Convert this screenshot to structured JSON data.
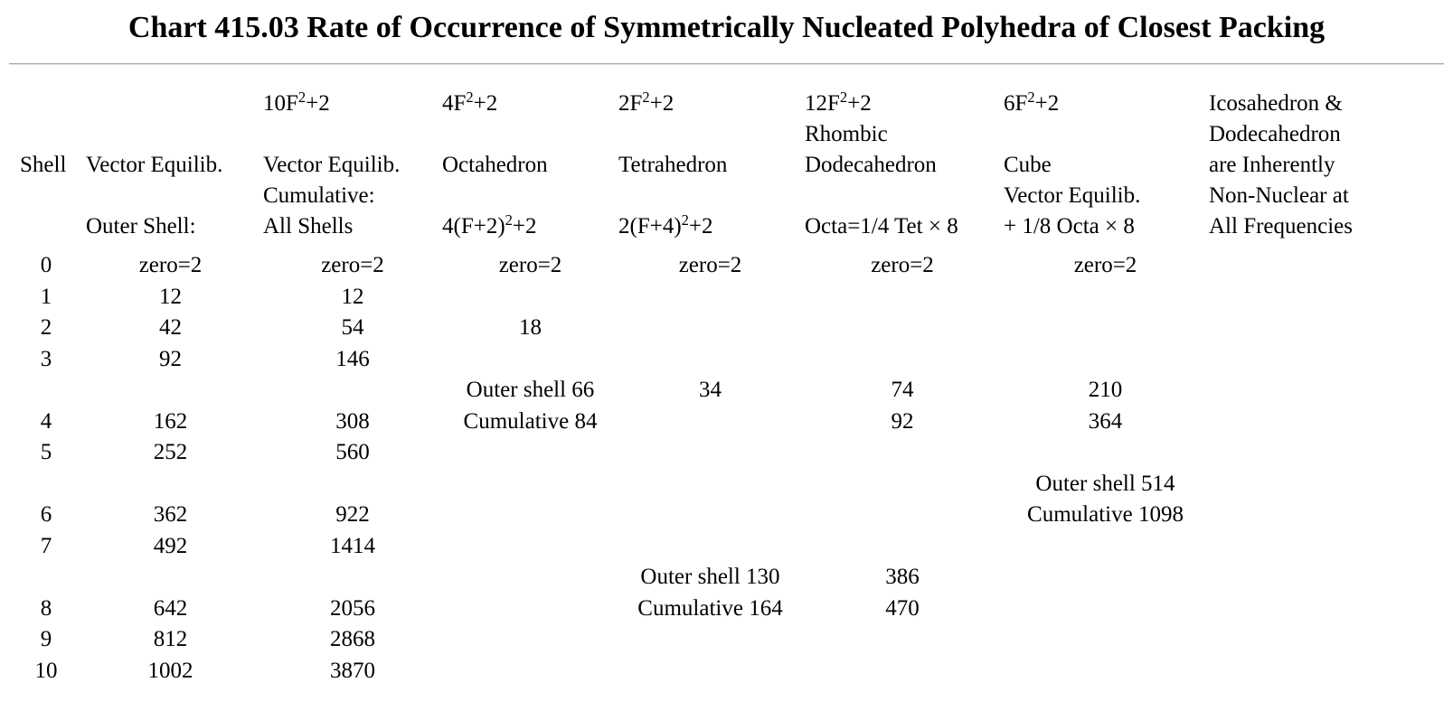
{
  "chart_data": {
    "type": "table",
    "title": "Chart 415.03 Rate of Occurrence of Symmetrically Nucleated Polyhedra of Closest Packing",
    "column_keys": [
      "shell",
      "vector-equilib-outer-shell",
      "vector-equilib-cumulative",
      "octahedron",
      "tetrahedron",
      "rhombic-dodecahedron",
      "cube",
      "icosa-dodeca-note"
    ],
    "header_rows": [
      [
        "",
        "",
        {
          "pre": "10F",
          "sup": "2",
          "post": "+2"
        },
        {
          "pre": "4F",
          "sup": "2",
          "post": "+2"
        },
        {
          "pre": "2F",
          "sup": "2",
          "post": "+2"
        },
        {
          "pre": "12F",
          "sup": "2",
          "post": "+2"
        },
        {
          "pre": "6F",
          "sup": "2",
          "post": "+2"
        },
        "Icosahedron &"
      ],
      [
        "",
        "",
        "",
        "",
        "",
        "Rhombic",
        "",
        "Dodecahedron"
      ],
      [
        "Shell",
        "Vector Equilib.",
        "Vector Equilib.",
        "Octahedron",
        "Tetrahedron",
        "Dodecahedron",
        "Cube",
        "are Inherently"
      ],
      [
        "",
        "",
        "Cumulative:",
        "",
        "",
        "",
        "Vector Equilib.",
        "Non-Nuclear at"
      ],
      [
        "",
        "Outer Shell:",
        "All Shells",
        {
          "pre": "4(F+2)",
          "sup": "2",
          "post": "+2"
        },
        {
          "pre": "2(F+4)",
          "sup": "2",
          "post": "+2"
        },
        "Octa=1/4 Tet × 8",
        "+ 1/8 Octa × 8",
        "All Frequencies"
      ]
    ],
    "rows": [
      [
        "0",
        "zero=2",
        "zero=2",
        "zero=2",
        "zero=2",
        "zero=2",
        "zero=2",
        ""
      ],
      [
        "1",
        "12",
        "12",
        "",
        "",
        "",
        "",
        ""
      ],
      [
        "2",
        "42",
        "54",
        "18",
        "",
        "",
        "",
        ""
      ],
      [
        "3",
        "92",
        "146",
        "",
        "",
        "",
        "",
        ""
      ],
      [
        "",
        "",
        "",
        "Outer shell 66",
        "34",
        "74",
        "210",
        ""
      ],
      [
        "4",
        "162",
        "308",
        "Cumulative 84",
        "",
        "92",
        "364",
        ""
      ],
      [
        "5",
        "252",
        "560",
        "",
        "",
        "",
        "",
        ""
      ],
      [
        "",
        "",
        "",
        "",
        "",
        "",
        "Outer shell 514",
        ""
      ],
      [
        "6",
        "362",
        "922",
        "",
        "",
        "",
        "Cumulative 1098",
        ""
      ],
      [
        "7",
        "492",
        "1414",
        "",
        "",
        "",
        "",
        ""
      ],
      [
        "",
        "",
        "",
        "",
        "Outer shell 130",
        "386",
        "",
        ""
      ],
      [
        "8",
        "642",
        "2056",
        "",
        "Cumulative 164",
        "470",
        "",
        ""
      ],
      [
        "9",
        "812",
        "2868",
        "",
        "",
        "",
        "",
        ""
      ],
      [
        "10",
        "1002",
        "3870",
        "",
        "",
        "",
        "",
        ""
      ]
    ]
  }
}
